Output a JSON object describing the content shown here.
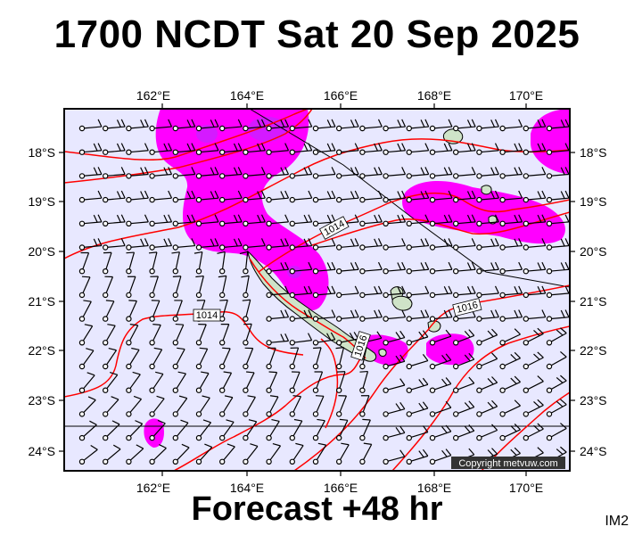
{
  "title": "1700 NCDT Sat 20 Sep 2025",
  "footer": "Forecast +48 hr",
  "product_code": "IM2",
  "copyright": "Copyright metvuw.com",
  "lon_labels": [
    "162°E",
    "164°E",
    "166°E",
    "168°E",
    "170°E"
  ],
  "lat_labels": [
    "18°S",
    "19°S",
    "20°S",
    "21°S",
    "22°S",
    "23°S",
    "24°S"
  ],
  "isobar_labels": [
    "1014",
    "1014",
    "1016",
    "1016"
  ],
  "colors": {
    "ocean": "#e8e8ff",
    "rain": "#ff00ff",
    "rain_heavy": "#b030ff",
    "isobar": "#ff0000",
    "land": "#cfe3c8"
  }
}
